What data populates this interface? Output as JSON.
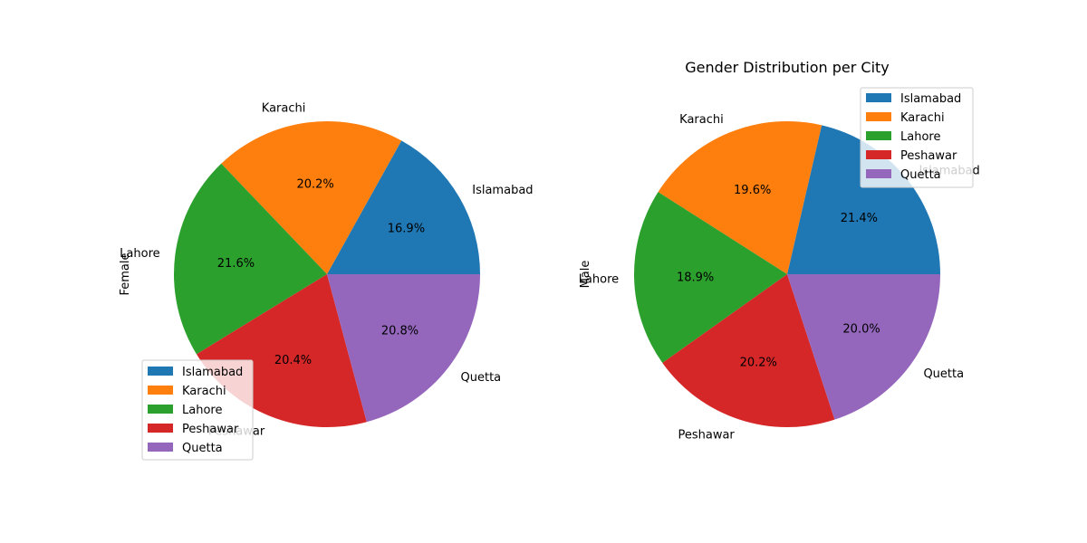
{
  "colors": [
    "#1f77b4",
    "#ff7f0e",
    "#2ca02c",
    "#d62728",
    "#9467bd"
  ],
  "chart_data": [
    {
      "type": "pie",
      "title": "",
      "ylabel": "Female",
      "categories": [
        "Islamabad",
        "Karachi",
        "Lahore",
        "Peshawar",
        "Quetta"
      ],
      "values": [
        16.9,
        20.2,
        21.6,
        20.4,
        20.8
      ],
      "percent_labels": [
        "16.9%",
        "20.2%",
        "21.6%",
        "20.4%",
        "20.8%"
      ],
      "legend": {
        "entries": [
          "Islamabad",
          "Karachi",
          "Lahore",
          "Peshawar",
          "Quetta"
        ],
        "placement": "lower-left"
      }
    },
    {
      "type": "pie",
      "title": "Gender Distribution per City",
      "ylabel": "Male",
      "categories": [
        "Islamabad",
        "Karachi",
        "Lahore",
        "Peshawar",
        "Quetta"
      ],
      "values": [
        21.4,
        19.6,
        18.9,
        20.2,
        20.0
      ],
      "percent_labels": [
        "21.4%",
        "19.6%",
        "18.9%",
        "20.2%",
        "20.0%"
      ],
      "legend": {
        "entries": [
          "Islamabad",
          "Karachi",
          "Lahore",
          "Peshawar",
          "Quetta"
        ],
        "placement": "upper-right"
      }
    }
  ]
}
